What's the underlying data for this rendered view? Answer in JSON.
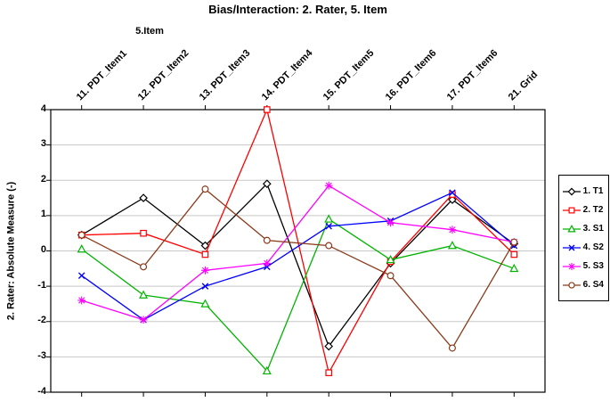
{
  "chart_data": {
    "type": "line",
    "title": "Bias/Interaction: 2. Rater, 5. Item",
    "subtitle": "5.Item",
    "ylabel": "2. Rater: Absolute Measure (-)",
    "ylim": [
      -4,
      4
    ],
    "yticks": [
      4,
      3,
      2,
      1,
      0,
      -1,
      -2,
      -3,
      -4
    ],
    "grid": "horizontal",
    "grid_color": "#c8c8c8",
    "legend_position": "right",
    "categories": [
      "11. PDT_Item1",
      "12. PDT_Item2",
      "13. PDT_Item3",
      "14. PDT_Item4",
      "15. PDT_Item5",
      "16. PDT_Item6",
      "17. PDT_Item6",
      "21. Grid"
    ],
    "series": [
      {
        "name": "1. T1",
        "color": "#000000",
        "marker": "diamond",
        "values": [
          0.45,
          1.5,
          0.15,
          1.9,
          -2.7,
          -0.35,
          1.45,
          0.2
        ]
      },
      {
        "name": "2. T2",
        "color": "#ff0000",
        "marker": "square",
        "values": [
          0.45,
          0.5,
          -0.1,
          4.0,
          -3.45,
          -0.3,
          1.6,
          -0.1
        ]
      },
      {
        "name": "3. S1",
        "color": "#00b400",
        "marker": "triangle",
        "values": [
          0.05,
          -1.25,
          -1.5,
          -3.4,
          0.9,
          -0.25,
          0.15,
          -0.5
        ]
      },
      {
        "name": "4. S2",
        "color": "#0000ff",
        "marker": "x",
        "values": [
          -0.7,
          -1.95,
          -1.0,
          -0.45,
          0.7,
          0.85,
          1.65,
          0.15
        ]
      },
      {
        "name": "5. S3",
        "color": "#ff00ff",
        "marker": "star",
        "values": [
          -1.4,
          -1.95,
          -0.55,
          -0.35,
          1.85,
          0.8,
          0.6,
          0.25
        ]
      },
      {
        "name": "6. S4",
        "color": "#8b3a1a",
        "marker": "circle",
        "values": [
          0.45,
          -0.45,
          1.75,
          0.3,
          0.15,
          -0.7,
          -2.75,
          0.25
        ]
      }
    ]
  }
}
